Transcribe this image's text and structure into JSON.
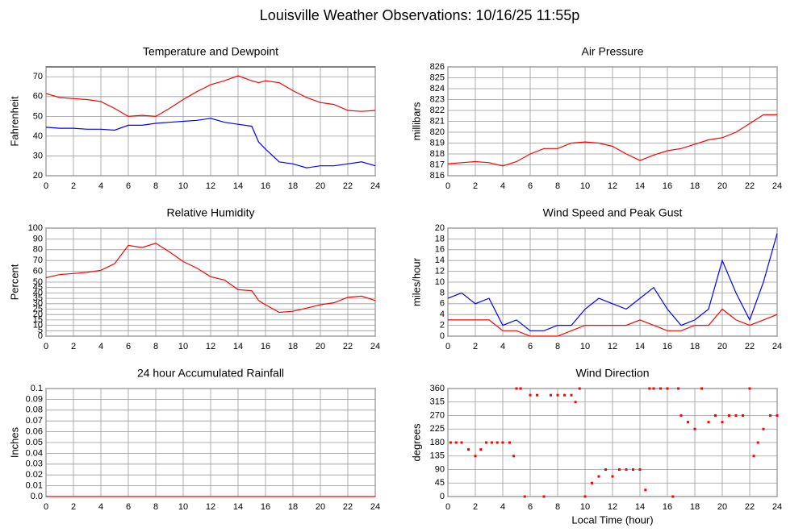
{
  "title": "Louisville Weather Observations: 10/16/25 11:55p",
  "chart_data": [
    {
      "type": "line",
      "title": "Temperature and Dewpoint",
      "ylabel": "Fahrenheit",
      "x": [
        0,
        1,
        2,
        3,
        4,
        5,
        6,
        7,
        8,
        9,
        10,
        11,
        12,
        13,
        14,
        15,
        15.5,
        16,
        17,
        18,
        19,
        20,
        21,
        22,
        23,
        24
      ],
      "xlim": [
        0,
        24
      ],
      "xticks": [
        0,
        2,
        4,
        6,
        8,
        10,
        12,
        14,
        16,
        18,
        20,
        22,
        24
      ],
      "ylim": [
        20,
        75
      ],
      "yticks": [
        20,
        30,
        40,
        50,
        60,
        70
      ],
      "grid": true,
      "series": [
        {
          "color": "#ff0000",
          "values": [
            61.5,
            59.5,
            59,
            58.5,
            57.5,
            54,
            50,
            50.5,
            50,
            54,
            58.5,
            62.5,
            66,
            68,
            70.5,
            68,
            67,
            68,
            67,
            63,
            59.5,
            57,
            56,
            53,
            52.5,
            53
          ]
        },
        {
          "color": "#0000ff",
          "values": [
            44.5,
            44,
            44,
            43.5,
            43.5,
            43,
            45.5,
            45.5,
            46.5,
            47,
            47.5,
            48,
            49,
            47,
            46,
            45,
            37,
            33.5,
            27,
            26,
            24,
            25,
            25,
            26,
            27,
            25
          ]
        }
      ]
    },
    {
      "type": "line",
      "title": "Air Pressure",
      "ylabel": "millibars",
      "x": [
        0,
        1,
        2,
        3,
        4,
        5,
        6,
        7,
        8,
        9,
        10,
        11,
        12,
        13,
        14,
        15,
        16,
        17,
        18,
        19,
        20,
        21,
        22,
        23,
        24
      ],
      "xlim": [
        0,
        24
      ],
      "xticks": [
        0,
        2,
        4,
        6,
        8,
        10,
        12,
        14,
        16,
        18,
        20,
        22,
        24
      ],
      "ylim": [
        816,
        826
      ],
      "yticks": [
        816,
        817,
        818,
        819,
        820,
        821,
        822,
        823,
        824,
        825,
        826
      ],
      "grid": true,
      "series": [
        {
          "color": "#ff0000",
          "values": [
            817.1,
            817.2,
            817.3,
            817.2,
            816.9,
            817.3,
            818,
            818.5,
            818.5,
            819,
            819.1,
            819,
            818.7,
            818,
            817.4,
            817.9,
            818.3,
            818.5,
            818.9,
            819.3,
            819.5,
            820,
            820.8,
            821.6,
            821.6
          ]
        }
      ]
    },
    {
      "type": "line",
      "title": "Relative Humidity",
      "ylabel": "Percent",
      "x": [
        0,
        1,
        2,
        3,
        4,
        5,
        6,
        7,
        8,
        9,
        10,
        11,
        12,
        13,
        14,
        15,
        15.5,
        16,
        17,
        18,
        19,
        20,
        21,
        22,
        23,
        24
      ],
      "xlim": [
        0,
        24
      ],
      "xticks": [
        0,
        2,
        4,
        6,
        8,
        10,
        12,
        14,
        16,
        18,
        20,
        22,
        24
      ],
      "ylim": [
        0,
        100
      ],
      "yticks": [
        0,
        5,
        10,
        15,
        20,
        25,
        30,
        35,
        40,
        45,
        50,
        60,
        70,
        80,
        90,
        100
      ],
      "grid": true,
      "series": [
        {
          "color": "#ff0000",
          "values": [
            54,
            57,
            58,
            59,
            61,
            67,
            84,
            82,
            86,
            78,
            69,
            63,
            55,
            52,
            43,
            42,
            33,
            29,
            22,
            23,
            26,
            29,
            31,
            36,
            37,
            33
          ]
        }
      ]
    },
    {
      "type": "line",
      "title": "Wind Speed and Peak Gust",
      "ylabel": "miles/hour",
      "x": [
        0,
        1,
        2,
        3,
        4,
        5,
        6,
        7,
        8,
        9,
        10,
        11,
        12,
        13,
        14,
        15,
        16,
        17,
        18,
        19,
        20,
        21,
        22,
        23,
        24
      ],
      "xlim": [
        0,
        24
      ],
      "xticks": [
        0,
        2,
        4,
        6,
        8,
        10,
        12,
        14,
        16,
        18,
        20,
        22,
        24
      ],
      "ylim": [
        0,
        20
      ],
      "yticks": [
        0,
        2,
        4,
        6,
        8,
        10,
        12,
        14,
        16,
        18,
        20
      ],
      "grid": true,
      "series": [
        {
          "color": "#ff0000",
          "values": [
            3,
            3,
            3,
            3,
            1,
            1,
            0,
            0,
            0,
            1,
            2,
            2,
            2,
            2,
            3,
            2,
            1,
            1,
            2,
            2,
            5,
            3,
            2,
            3,
            4
          ]
        },
        {
          "color": "#0000ff",
          "values": [
            7,
            8,
            6,
            7,
            2,
            3,
            1,
            1,
            2,
            2,
            5,
            7,
            6,
            5,
            7,
            9,
            5,
            2,
            3,
            5,
            14,
            8,
            3,
            10,
            19
          ]
        }
      ]
    },
    {
      "type": "line",
      "title": "24 hour Accumulated Rainfall",
      "ylabel": "Inches",
      "x": [
        0,
        24
      ],
      "xlim": [
        0,
        24
      ],
      "xticks": [
        0,
        2,
        4,
        6,
        8,
        10,
        12,
        14,
        16,
        18,
        20,
        22,
        24
      ],
      "ylim": [
        0,
        0.1
      ],
      "yticks": [
        {
          "value": 0,
          "label": "0.0"
        },
        0.01,
        0.02,
        0.03,
        0.04,
        0.05,
        0.06,
        0.07,
        0.08,
        0.09,
        0.1
      ],
      "grid": true,
      "series": [
        {
          "color": "#ff0000",
          "values": [
            0,
            0
          ]
        }
      ]
    },
    {
      "type": "scatter",
      "title": "Wind Direction",
      "ylabel": "degrees",
      "xlabel": "Local Time (hour)",
      "x": [
        0.2,
        0.6,
        1,
        1.5,
        2,
        2.4,
        2.8,
        3.2,
        3.6,
        4,
        4.5,
        4.8,
        5,
        5.3,
        5.6,
        6,
        6.5,
        7,
        7.5,
        8,
        8.5,
        9,
        9.3,
        9.6,
        10,
        10.5,
        11,
        11.5,
        12,
        12.5,
        13,
        13.5,
        14,
        14.4,
        14.7,
        15,
        15.5,
        16,
        16.4,
        16.8,
        17,
        17.5,
        18,
        18.5,
        19,
        19.5,
        20,
        20.5,
        21,
        21.5,
        22,
        22.3,
        22.6,
        23,
        23.5,
        24
      ],
      "xlim": [
        0,
        24
      ],
      "xticks": [
        0,
        2,
        4,
        6,
        8,
        10,
        12,
        14,
        16,
        18,
        20,
        22,
        24
      ],
      "ylim": [
        0,
        360
      ],
      "yticks": [
        0,
        45,
        90,
        135,
        180,
        225,
        270,
        315,
        360
      ],
      "grid": true,
      "series": [
        {
          "color": "#ff0000",
          "values": [
            180,
            180,
            180,
            157,
            135,
            157,
            180,
            180,
            180,
            180,
            180,
            135,
            360,
            360,
            0,
            338,
            338,
            0,
            338,
            338,
            338,
            338,
            315,
            360,
            0,
            45,
            67,
            90,
            67,
            90,
            90,
            90,
            90,
            22,
            360,
            360,
            360,
            360,
            0,
            360,
            270,
            248,
            225,
            360,
            248,
            270,
            248,
            270,
            270,
            270,
            360,
            135,
            180,
            225,
            270,
            270
          ]
        }
      ]
    }
  ]
}
